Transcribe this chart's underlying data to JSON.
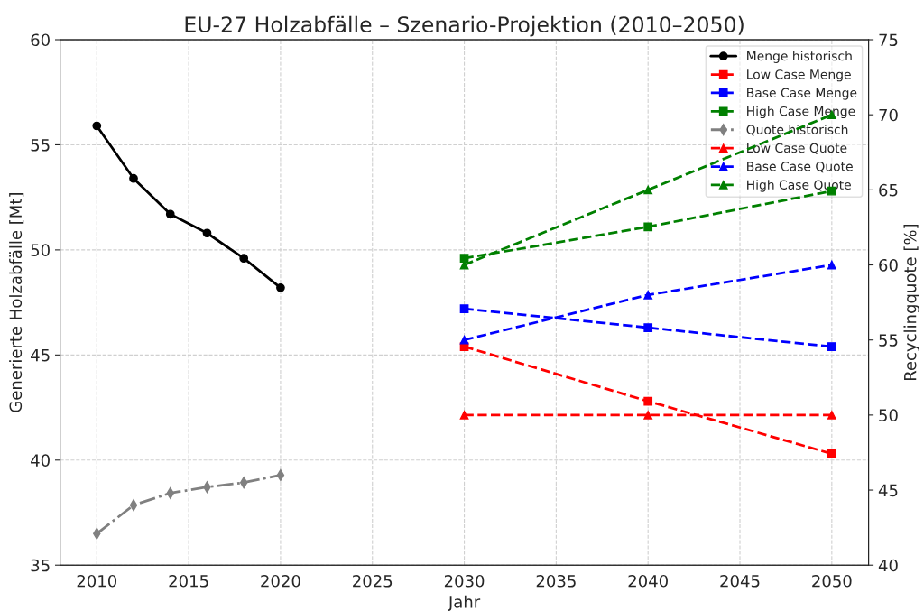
{
  "chart_data": {
    "type": "line",
    "title": "EU-27 Holzabfälle – Szenario-Projektion (2010–2050)",
    "xlabel": "Jahr",
    "ylabel": "Generierte Holzabfälle [Mt]",
    "y2label": "Recyclingquote [%]",
    "xlim": [
      2008,
      2052
    ],
    "xticks": [
      2010,
      2015,
      2020,
      2025,
      2030,
      2035,
      2040,
      2045,
      2050
    ],
    "ylim": [
      35,
      60
    ],
    "yticks": [
      35,
      40,
      45,
      50,
      55,
      60
    ],
    "y2lim": [
      40,
      75
    ],
    "y2ticks": [
      40,
      45,
      50,
      55,
      60,
      65,
      70,
      75
    ],
    "grid": true,
    "legend": "top right",
    "series": [
      {
        "name": "Menge historisch",
        "color": "#000000",
        "marker": "circle",
        "line_style": "solid",
        "x": [
          2010,
          2012,
          2014,
          2016,
          2018,
          2020
        ],
        "values": [
          55.9,
          53.4,
          51.7,
          50.8,
          49.6,
          48.2
        ]
      },
      {
        "name": "Low Case Menge",
        "color": "#ff0000",
        "marker": "square",
        "line_style": "dashed",
        "x": [
          2030,
          2040,
          2050
        ],
        "values": [
          45.4,
          42.8,
          40.3
        ]
      },
      {
        "name": "Base Case Menge",
        "color": "#0000ff",
        "marker": "square",
        "line_style": "dashed",
        "x": [
          2030,
          2040,
          2050
        ],
        "values": [
          47.2,
          46.3,
          45.4
        ]
      },
      {
        "name": "High Case Menge",
        "color": "#008000",
        "marker": "square",
        "line_style": "dashed",
        "x": [
          2030,
          2040,
          2050
        ],
        "values": [
          49.6,
          51.1,
          52.8
        ]
      },
      {
        "name": "Quote historisch",
        "color": "#808080",
        "marker": "diamond",
        "line_style": "dashdot",
        "axis": "y2",
        "x": [
          2010,
          2012,
          2014,
          2016,
          2018,
          2020
        ],
        "values": [
          42.1,
          44.0,
          44.8,
          45.2,
          45.5,
          46.0
        ]
      },
      {
        "name": "Low Case Quote",
        "color": "#ff0000",
        "marker": "triangle",
        "line_style": "dashed",
        "axis": "y2",
        "x": [
          2030,
          2040,
          2050
        ],
        "values": [
          50,
          50,
          50
        ]
      },
      {
        "name": "Base Case Quote",
        "color": "#0000ff",
        "marker": "triangle",
        "line_style": "dashed",
        "axis": "y2",
        "x": [
          2030,
          2040,
          2050
        ],
        "values": [
          55,
          58,
          60
        ]
      },
      {
        "name": "High Case Quote",
        "color": "#008000",
        "marker": "triangle",
        "line_style": "dashed",
        "axis": "y2",
        "x": [
          2030,
          2040,
          2050
        ],
        "values": [
          60,
          65,
          70
        ]
      }
    ]
  }
}
